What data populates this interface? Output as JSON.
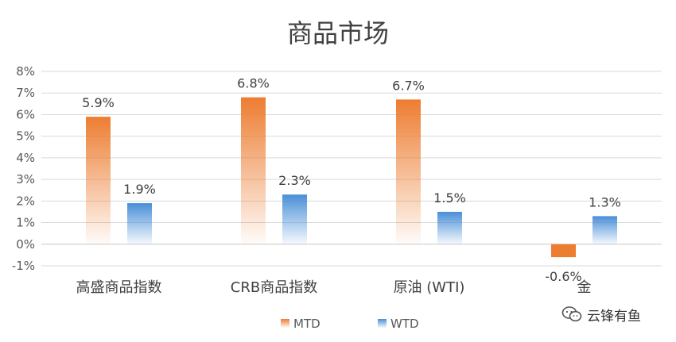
{
  "chart_data": {
    "type": "bar",
    "title": "商品市场",
    "categories": [
      "高盛商品指数",
      "CRB商品指数",
      "原油 (WTI)",
      "金"
    ],
    "series": [
      {
        "name": "MTD",
        "values": [
          5.9,
          6.8,
          6.7,
          -0.6
        ],
        "labels": [
          "5.9%",
          "6.8%",
          "6.7%",
          "-0.6%"
        ],
        "color": "#ED7D31"
      },
      {
        "name": "WTD",
        "values": [
          1.9,
          2.3,
          1.5,
          1.3
        ],
        "labels": [
          "1.9%",
          "2.3%",
          "1.5%",
          "1.3%"
        ],
        "color": "#5B9BD5"
      }
    ],
    "ylim": [
      -1,
      8
    ],
    "yticks": [
      8,
      7,
      6,
      5,
      4,
      3,
      2,
      1,
      0,
      -1
    ],
    "ytick_labels": [
      "8%",
      "7%",
      "6%",
      "5%",
      "4%",
      "3%",
      "2%",
      "1%",
      "0%",
      "-1%"
    ],
    "grid": true,
    "legend_position": "bottom"
  },
  "watermark": {
    "text": "云锋有鱼",
    "icon": "wechat-icon"
  }
}
